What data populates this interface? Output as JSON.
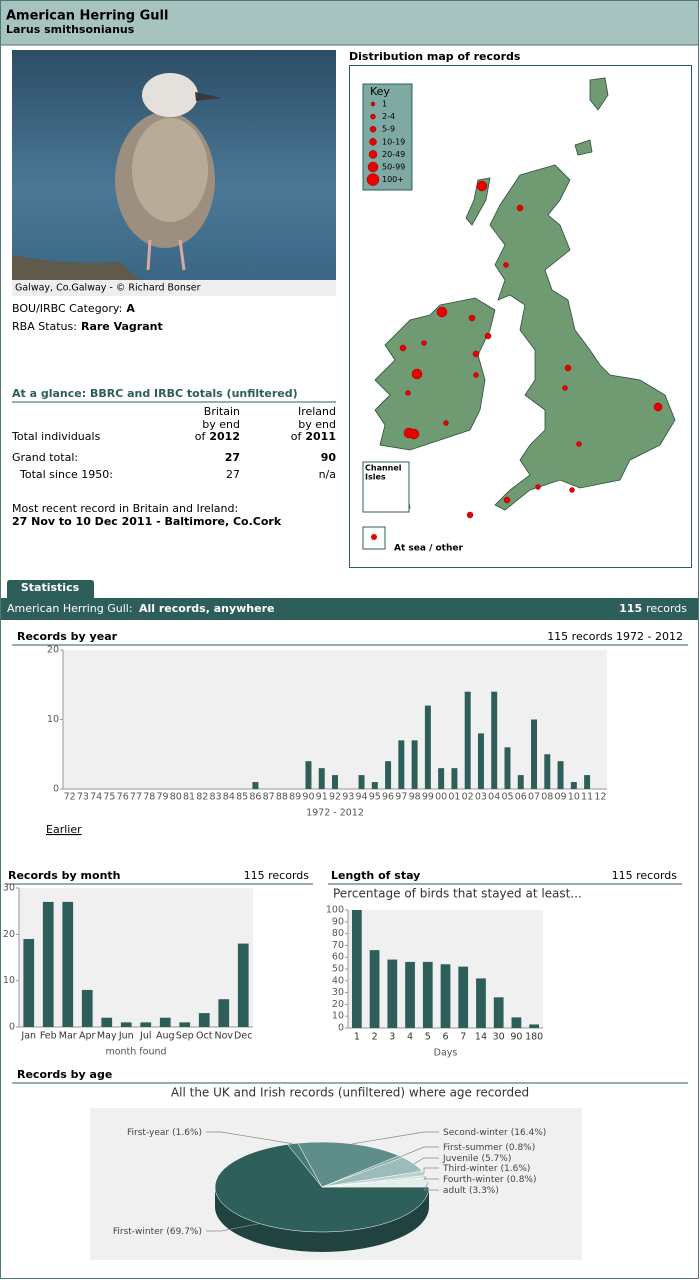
{
  "header": {
    "title": "American Herring Gull",
    "subtitle": "Larus smithsonianus"
  },
  "photo_caption": "Galway, Co.Galway - © Richard Bonser",
  "category": {
    "label": "BOU/IRBC Category:",
    "value": "A"
  },
  "status": {
    "label": "RBA Status:",
    "value": "Rare Vagrant"
  },
  "glance": {
    "title": "At a glance: BBRC and IRBC totals (unfiltered)",
    "columns": [
      [
        "Britain",
        "by end",
        "of",
        "2012"
      ],
      [
        "Ireland",
        "by end",
        "of",
        "2011"
      ]
    ],
    "row_header": "Total individuals",
    "rows": [
      [
        "Grand total:",
        27,
        90
      ],
      [
        "Total since 1950:",
        27,
        "n/a"
      ]
    ]
  },
  "recent": {
    "label": "Most recent record in Britain and Ireland:",
    "value": "27 Nov to 10 Dec 2011 - Baltimore, Co.Cork"
  },
  "map": {
    "title": "Distribution map of records",
    "key_title": "Key",
    "key": [
      "1",
      "2-4",
      "5-9",
      "10-19",
      "20-49",
      "50-99",
      "100+"
    ],
    "channel_isles": [
      "Channel",
      "Isles"
    ],
    "at_sea": "At sea / other"
  },
  "tab": "Statistics",
  "summary": {
    "species": "American Herring Gull:",
    "scope": "All records, anywhere",
    "count": 115,
    "unit": "records"
  },
  "chart_data": [
    {
      "type": "bar",
      "title": "Records by year",
      "note": "115 records 1972 - 2012",
      "x_label": "1972 - 2012",
      "link": "Earlier",
      "color": "#2e5e5a",
      "categories": [
        "72",
        "73",
        "74",
        "75",
        "76",
        "77",
        "78",
        "79",
        "80",
        "81",
        "82",
        "83",
        "84",
        "85",
        "86",
        "87",
        "88",
        "89",
        "90",
        "91",
        "92",
        "93",
        "94",
        "95",
        "96",
        "97",
        "98",
        "99",
        "00",
        "01",
        "02",
        "03",
        "04",
        "05",
        "06",
        "07",
        "08",
        "09",
        "10",
        "11",
        "12"
      ],
      "values": [
        0,
        0,
        0,
        0,
        0,
        0,
        0,
        0,
        0,
        0,
        0,
        0,
        0,
        0,
        1,
        0,
        0,
        0,
        4,
        3,
        2,
        0,
        2,
        1,
        4,
        7,
        7,
        12,
        3,
        3,
        14,
        8,
        14,
        6,
        2,
        10,
        5,
        4,
        1,
        2,
        0
      ],
      "ylim": [
        0,
        20
      ],
      "yticks": [
        0,
        10,
        20
      ]
    },
    {
      "type": "bar",
      "title": "Records by month",
      "note": "115 records",
      "x_label": "month found",
      "color": "#2e5e5a",
      "categories": [
        "Jan",
        "Feb",
        "Mar",
        "Apr",
        "May",
        "Jun",
        "Jul",
        "Aug",
        "Sep",
        "Oct",
        "Nov",
        "Dec"
      ],
      "values": [
        19,
        27,
        27,
        8,
        2,
        1,
        1,
        2,
        1,
        3,
        6,
        18
      ],
      "ylim": [
        0,
        30
      ],
      "yticks": [
        0,
        10,
        20,
        30
      ]
    },
    {
      "type": "bar",
      "title": "Length of stay",
      "note": "115 records",
      "subtitle": "Percentage of birds that stayed at least...",
      "x_label": "Days",
      "color": "#2e5e5a",
      "categories": [
        1,
        2,
        3,
        4,
        5,
        6,
        7,
        14,
        30,
        90,
        180
      ],
      "values": [
        100,
        66,
        58,
        56,
        56,
        54,
        52,
        42,
        26,
        9,
        3
      ],
      "ylim": [
        0,
        100
      ],
      "yticks": [
        0,
        10,
        20,
        30,
        40,
        50,
        60,
        70,
        80,
        90,
        100
      ]
    },
    {
      "type": "pie",
      "title": "Records by age",
      "subtitle": "All the UK and Irish records (unfiltered) where age recorded",
      "categories": [
        "First-winter",
        "First-year",
        "Second-winter",
        "First-summer",
        "Juvenile",
        "Third-winter",
        "Fourth-winter",
        "adult"
      ],
      "values": [
        69.7,
        1.6,
        16.4,
        0.8,
        5.7,
        1.6,
        0.8,
        3.3
      ],
      "value_labels": [
        "(69.7%)",
        "(1.6%)",
        "(16.4%)",
        "(0.8%)",
        "(5.7%)",
        "(1.6%)",
        "(0.8%)",
        "(3.3%)"
      ],
      "colors": [
        "#2f5f5b",
        "#4a7a76",
        "#5f8e8a",
        "#7ea6a2",
        "#9bbcb8",
        "#b9d1ce",
        "#cfe0de",
        "#e4eeed"
      ]
    }
  ]
}
